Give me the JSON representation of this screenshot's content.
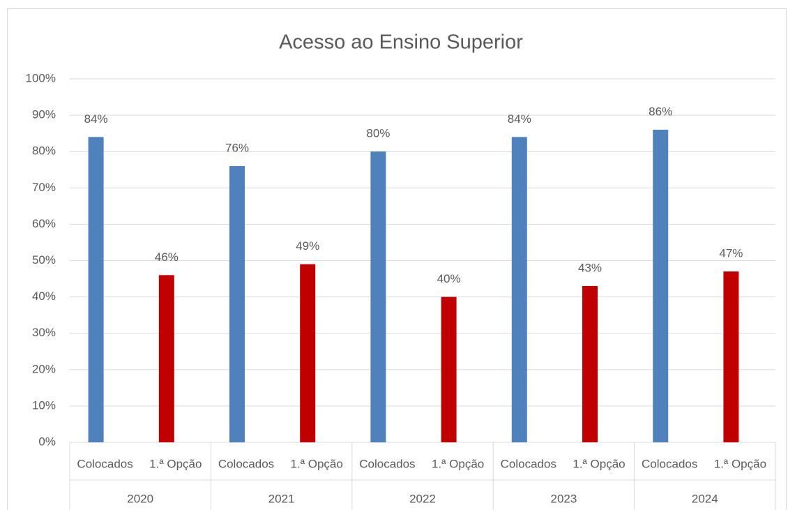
{
  "chart_data": {
    "type": "bar",
    "title": "Acesso ao Ensino Superior",
    "categories": [
      "Colocados",
      "1.ª Opção",
      "Colocados",
      "1.ª Opção",
      "Colocados",
      "1.ª Opção",
      "Colocados",
      "1.ª Opção",
      "Colocados",
      "1.ª Opção"
    ],
    "groups": [
      "2020",
      "2021",
      "2022",
      "2023",
      "2024"
    ],
    "values": [
      84,
      46,
      76,
      49,
      80,
      40,
      84,
      43,
      86,
      47
    ],
    "value_labels": [
      "84%",
      "46%",
      "76%",
      "49%",
      "80%",
      "40%",
      "84%",
      "43%",
      "86%",
      "47%"
    ],
    "bar_colors": [
      "#4f81bd",
      "#c00000"
    ],
    "ylim": [
      0,
      100
    ],
    "yticks": [
      {
        "value": 0,
        "label": "0%"
      },
      {
        "value": 10,
        "label": "10%"
      },
      {
        "value": 20,
        "label": "20%"
      },
      {
        "value": 30,
        "label": "30%"
      },
      {
        "value": 40,
        "label": "40%"
      },
      {
        "value": 50,
        "label": "50%"
      },
      {
        "value": 60,
        "label": "60%"
      },
      {
        "value": 70,
        "label": "70%"
      },
      {
        "value": 80,
        "label": "80%"
      },
      {
        "value": 90,
        "label": "90%"
      },
      {
        "value": 100,
        "label": "100%"
      }
    ],
    "grid": true
  }
}
